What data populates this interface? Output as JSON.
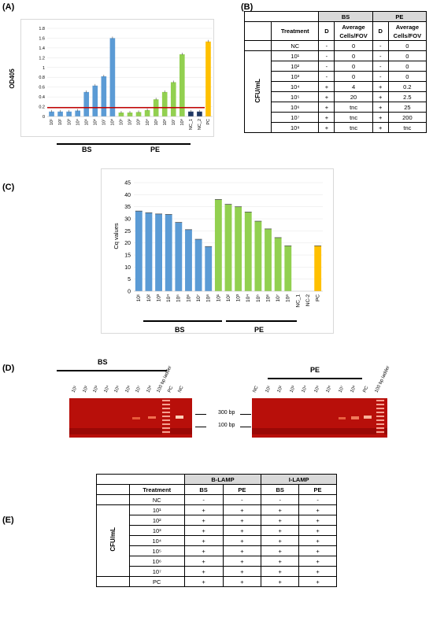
{
  "panels": {
    "a": "(A)",
    "b": "(B)",
    "c": "(C)",
    "d": "(D)",
    "e": "(E)"
  },
  "panel_a": {
    "chart_data": {
      "type": "bar",
      "ylabel": "OD405",
      "ylim": [
        0,
        1.8
      ],
      "yticks": [
        "0",
        "0.2",
        "0.4",
        "0.6",
        "0.8",
        "1",
        "1.2",
        "1.4",
        "1.6",
        "1.8"
      ],
      "categories": [
        "10¹",
        "10²",
        "10³",
        "10⁴",
        "10⁵",
        "10⁶",
        "10⁷",
        "10⁸",
        "10¹",
        "10²",
        "10³",
        "10⁴",
        "10⁵",
        "10⁶",
        "10⁷",
        "10⁸",
        "NC_1",
        "NC_2",
        "PC"
      ],
      "values": [
        0.1,
        0.1,
        0.1,
        0.12,
        0.5,
        0.63,
        0.82,
        1.6,
        0.08,
        0.08,
        0.09,
        0.13,
        0.35,
        0.5,
        0.7,
        1.27,
        0.1,
        0.1,
        1.53
      ],
      "colors": [
        "#5b9bd5",
        "#5b9bd5",
        "#5b9bd5",
        "#5b9bd5",
        "#5b9bd5",
        "#5b9bd5",
        "#5b9bd5",
        "#5b9bd5",
        "#92d050",
        "#92d050",
        "#92d050",
        "#92d050",
        "#92d050",
        "#92d050",
        "#92d050",
        "#92d050",
        "#1f3864",
        "#1f3864",
        "#ffc000"
      ],
      "threshold": 0.18,
      "threshold_color": "#c00000",
      "groups": [
        "BS",
        "PE"
      ]
    }
  },
  "panel_b": {
    "treatment": "Treatment",
    "bs": "BS",
    "pe": "PE",
    "d": "D",
    "avg": "Average Cells/FOV",
    "cfu": "CFU/mL",
    "rows": [
      [
        "NC",
        "-",
        "0",
        "-",
        "0"
      ],
      [
        "10¹",
        "-",
        "0",
        "-",
        "0"
      ],
      [
        "10²",
        "-",
        "0",
        "-",
        "0"
      ],
      [
        "10³",
        "-",
        "0",
        "-",
        "0"
      ],
      [
        "10⁴",
        "+",
        "4",
        "+",
        "0.2"
      ],
      [
        "10⁵",
        "+",
        "20",
        "+",
        "2.5"
      ],
      [
        "10⁶",
        "+",
        "tnc",
        "+",
        "25"
      ],
      [
        "10⁷",
        "+",
        "tnc",
        "+",
        "200"
      ],
      [
        "10⁸",
        "+",
        "tnc",
        "+",
        "tnc"
      ]
    ]
  },
  "panel_c": {
    "chart_data": {
      "type": "bar",
      "ylabel": "Cq values",
      "ylim": [
        0,
        45
      ],
      "yticks": [
        "0",
        "5",
        "10",
        "15",
        "20",
        "25",
        "30",
        "35",
        "40",
        "45"
      ],
      "categories": [
        "10¹",
        "10²",
        "10³",
        "10⁴",
        "10⁵",
        "10⁶",
        "10⁷",
        "10⁸",
        "10¹",
        "10²",
        "10³",
        "10⁴",
        "10⁵",
        "10⁶",
        "10⁷",
        "10⁸",
        "NC_1",
        "NC-2",
        "PC"
      ],
      "values": [
        33.2,
        32.5,
        32.0,
        31.8,
        28.5,
        25.5,
        21.5,
        18.5,
        38.0,
        36.0,
        35.0,
        32.8,
        29.0,
        25.8,
        22.2,
        18.8,
        0,
        0,
        18.8
      ],
      "colors": [
        "#5b9bd5",
        "#5b9bd5",
        "#5b9bd5",
        "#5b9bd5",
        "#5b9bd5",
        "#5b9bd5",
        "#5b9bd5",
        "#5b9bd5",
        "#92d050",
        "#92d050",
        "#92d050",
        "#92d050",
        "#92d050",
        "#92d050",
        "#92d050",
        "#92d050",
        "#92d050",
        "#92d050",
        "#ffc000"
      ],
      "groups": [
        "BS",
        "PE"
      ]
    }
  },
  "panel_d": {
    "bs_title": "BS",
    "pe_title": "PE",
    "bs_lanes": [
      "10¹",
      "10²",
      "10³",
      "10⁴",
      "10⁵",
      "10⁶",
      "10⁷",
      "10⁸",
      "100 bp ladder",
      "PC",
      "NC"
    ],
    "pe_lanes": [
      "NC",
      "10¹",
      "10²",
      "10³",
      "10⁴",
      "10⁵",
      "10⁶",
      "10⁷",
      "10⁸",
      "PC",
      "100 bp ladder"
    ],
    "bp300": "300 bp",
    "bp100": "100 bp"
  },
  "panel_e": {
    "treatment": "Treatment",
    "blamp": "B-LAMP",
    "ilamp": "I-LAMP",
    "bs": "BS",
    "pe": "PE",
    "cfu": "CFU/mL",
    "rows": [
      [
        "NC",
        "-",
        "-",
        "-",
        "-"
      ],
      [
        "10¹",
        "+",
        "+",
        "+",
        "+"
      ],
      [
        "10²",
        "+",
        "+",
        "+",
        "+"
      ],
      [
        "10³",
        "+",
        "+",
        "+",
        "+"
      ],
      [
        "10⁴",
        "+",
        "+",
        "+",
        "+"
      ],
      [
        "10⁵",
        "+",
        "+",
        "+",
        "+"
      ],
      [
        "10⁶",
        "+",
        "+",
        "+",
        "+"
      ],
      [
        "10⁷",
        "+",
        "+",
        "+",
        "+"
      ],
      [
        "PC",
        "+",
        "+",
        "+",
        "+"
      ]
    ]
  }
}
